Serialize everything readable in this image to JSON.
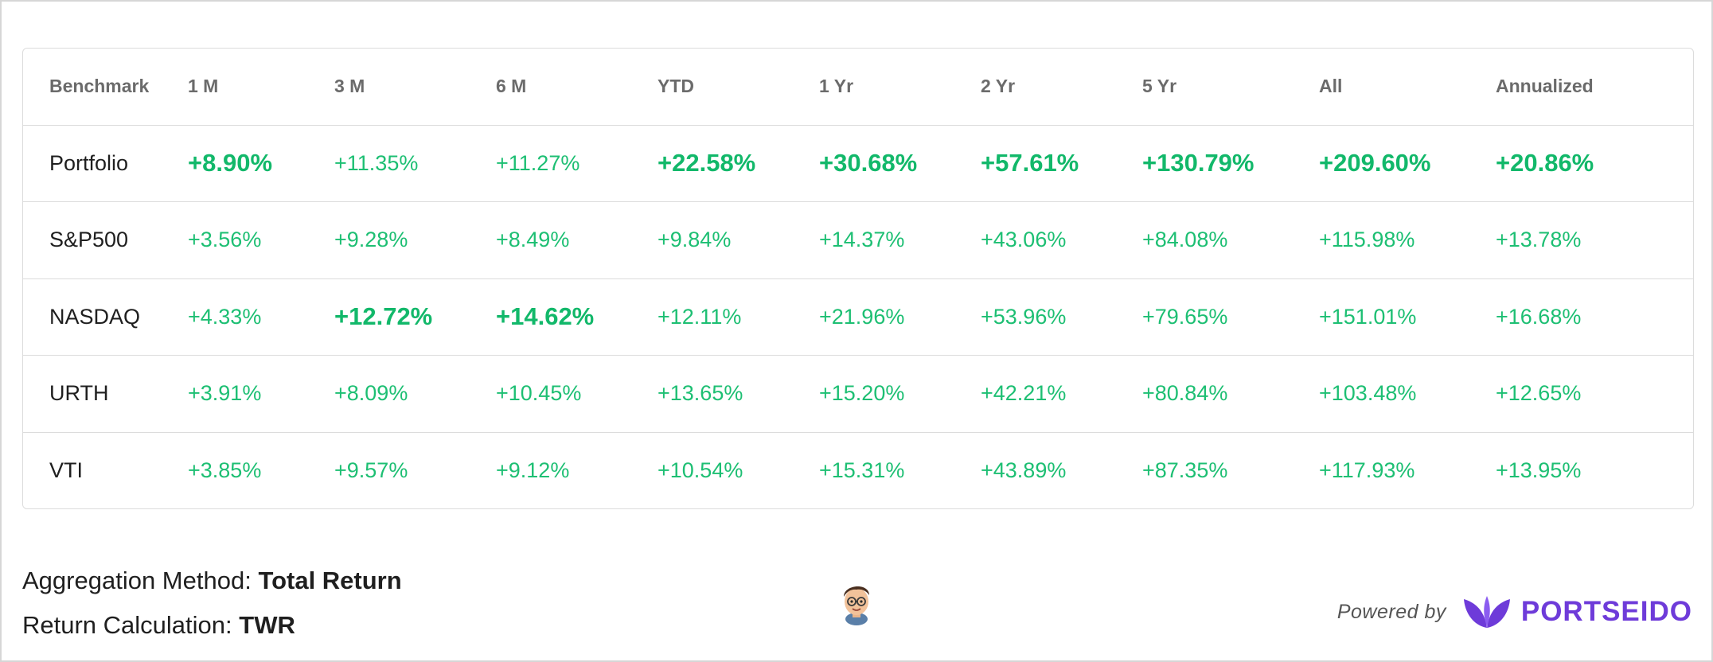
{
  "table": {
    "columns": [
      "Benchmark",
      "1 M",
      "3 M",
      "6 M",
      "YTD",
      "1 Yr",
      "2 Yr",
      "5 Yr",
      "All",
      "Annualized"
    ],
    "rows": [
      {
        "name": "Portfolio",
        "values": [
          "+8.90%",
          "+11.35%",
          "+11.27%",
          "+22.58%",
          "+30.68%",
          "+57.61%",
          "+130.79%",
          "+209.60%",
          "+20.86%"
        ],
        "best": [
          true,
          false,
          false,
          true,
          true,
          true,
          true,
          true,
          true
        ]
      },
      {
        "name": "S&P500",
        "values": [
          "+3.56%",
          "+9.28%",
          "+8.49%",
          "+9.84%",
          "+14.37%",
          "+43.06%",
          "+84.08%",
          "+115.98%",
          "+13.78%"
        ],
        "best": [
          false,
          false,
          false,
          false,
          false,
          false,
          false,
          false,
          false
        ]
      },
      {
        "name": "NASDAQ",
        "values": [
          "+4.33%",
          "+12.72%",
          "+14.62%",
          "+12.11%",
          "+21.96%",
          "+53.96%",
          "+79.65%",
          "+151.01%",
          "+16.68%"
        ],
        "best": [
          false,
          true,
          true,
          false,
          false,
          false,
          false,
          false,
          false
        ]
      },
      {
        "name": "URTH",
        "values": [
          "+3.91%",
          "+8.09%",
          "+10.45%",
          "+13.65%",
          "+15.20%",
          "+42.21%",
          "+80.84%",
          "+103.48%",
          "+12.65%"
        ],
        "best": [
          false,
          false,
          false,
          false,
          false,
          false,
          false,
          false,
          false
        ]
      },
      {
        "name": "VTI",
        "values": [
          "+3.85%",
          "+9.57%",
          "+9.12%",
          "+10.54%",
          "+15.31%",
          "+43.89%",
          "+87.35%",
          "+117.93%",
          "+13.95%"
        ],
        "best": [
          false,
          false,
          false,
          false,
          false,
          false,
          false,
          false,
          false
        ]
      }
    ]
  },
  "footer": {
    "aggregation_label": "Aggregation Method:",
    "aggregation_value": "Total Return",
    "calculation_label": "Return Calculation:",
    "calculation_value": "TWR",
    "powered_by": "Powered by",
    "brand": "PORTSEIDO"
  },
  "colors": {
    "positive": "#1dbf73",
    "brand": "#6e3bd9"
  },
  "icons": {
    "avatar": "memoji-avatar-icon",
    "brand_logo": "leaf-logo-icon"
  }
}
